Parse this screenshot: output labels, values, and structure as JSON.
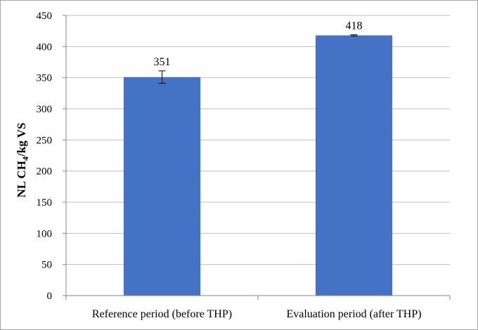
{
  "chart_data": {
    "type": "bar",
    "title": "",
    "xlabel": "",
    "ylabel_main": "NL CH",
    "ylabel_sub": "4",
    "ylabel_tail": "/kg VS",
    "categories": [
      "Reference period (before THP)",
      "Evaluation period (after THP)"
    ],
    "values": [
      351,
      418
    ],
    "data_labels": [
      "351",
      "418"
    ],
    "error": [
      10,
      1
    ],
    "ylim": [
      0,
      450
    ],
    "yticks": [
      0,
      50,
      100,
      150,
      200,
      250,
      300,
      350,
      400,
      450
    ],
    "grid": true,
    "legend": "none",
    "colors": {
      "bar": "#4472c4",
      "grid": "#bfbfbf",
      "axis": "#868686"
    }
  }
}
